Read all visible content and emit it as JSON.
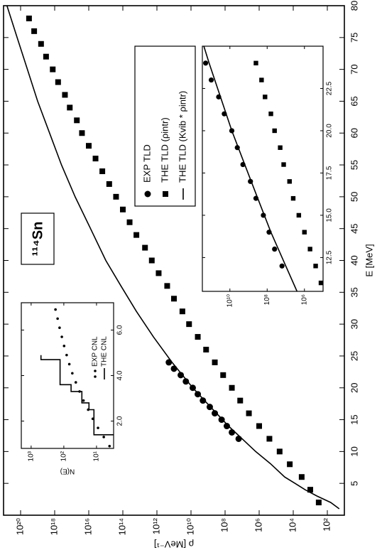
{
  "chart_data": [
    {
      "type": "line",
      "xlabel": "E [MeV]",
      "ylabel": "ρ [MeV⁻¹]",
      "annotation": "¹¹⁴Sn",
      "xlim": [
        0,
        80
      ],
      "xticks": [
        5,
        10,
        15,
        20,
        25,
        30,
        35,
        40,
        45,
        50,
        55,
        60,
        65,
        70,
        75,
        80
      ],
      "ylim": [
        10,
        1e+21
      ],
      "yscale": "log",
      "yticks": [
        {
          "value": 100.0,
          "label": "10²"
        },
        {
          "value": 10000.0,
          "label": "10⁴"
        },
        {
          "value": 1000000.0,
          "label": "10⁶"
        },
        {
          "value": 100000000.0,
          "label": "10⁸"
        },
        {
          "value": 10000000000.0,
          "label": "10¹⁰"
        },
        {
          "value": 1000000000000.0,
          "label": "10¹²"
        },
        {
          "value": 100000000000000.0,
          "label": "10¹⁴"
        },
        {
          "value": 1e+16,
          "label": "10¹⁶"
        },
        {
          "value": 1e+18,
          "label": "10¹⁸"
        },
        {
          "value": 1e+20,
          "label": "10²⁰"
        }
      ],
      "legend": "right",
      "series": [
        {
          "name": "EXP TLD",
          "style": "circle",
          "color": "#000000",
          "x": [
            12,
            13,
            14,
            15,
            16,
            17,
            18,
            19,
            20,
            21,
            22,
            23,
            24
          ],
          "values": [
            16000000.0,
            40000000.0,
            79000000.0,
            160000000.0,
            400000000.0,
            790000000.0,
            2000000000.0,
            4000000000.0,
            7900000000.0,
            20000000000.0,
            40000000000.0,
            100000000000.0,
            200000000000.0
          ]
        },
        {
          "name": "THE TLD (ρintr)",
          "style": "square",
          "color": "#000000",
          "x": [
            2,
            4,
            6,
            8,
            10,
            12,
            14,
            16,
            18,
            20,
            22,
            24,
            26,
            28,
            30,
            32,
            34,
            36,
            38,
            40,
            42,
            44,
            46,
            48,
            50,
            52,
            54,
            56,
            58,
            60,
            62,
            64,
            66,
            68,
            70,
            72,
            74,
            76,
            78
          ],
          "values": [
            320.0,
            1000.0,
            3200.0,
            16000.0,
            63000.0,
            250000.0,
            1000000.0,
            4000000.0,
            13000000.0,
            40000000.0,
            130000000.0,
            400000000.0,
            1300000000.0,
            4000000000.0,
            13000000000.0,
            32000000000.0,
            100000000000.0,
            250000000000.0,
            790000000000.0,
            2000000000000.0,
            5000000000000.0,
            16000000000000.0,
            40000000000000.0,
            100000000000000.0,
            250000000000000.0,
            630000000000000.0,
            1600000000000000.0,
            4000000000000000.0,
            1e+16,
            2.5e+16,
            5e+16,
            1.3e+17,
            2.5e+17,
            6.3e+17,
            1.3e+18,
            3.2e+18,
            6.3e+18,
            1.6e+19,
            3.2e+19
          ]
        },
        {
          "name": "THE TLD (Kvib * ρintr)",
          "style": "line",
          "color": "#000000",
          "x": [
            1,
            2,
            3,
            4,
            5,
            6,
            8,
            10,
            12,
            14,
            16,
            18,
            20,
            22,
            24,
            28,
            32,
            36,
            40,
            45,
            50,
            55,
            60,
            65,
            70,
            75,
            80
          ],
          "values": [
            20.0,
            63.0,
            400.0,
            2000.0,
            7900.0,
            32000.0,
            200000.0,
            1600000.0,
            10000000.0,
            63000000.0,
            320000000.0,
            1600000000.0,
            7900000000.0,
            32000000000.0,
            130000000000.0,
            1600000000000.0,
            16000000000000.0,
            130000000000000.0,
            1000000000000000.0,
            7900000000000000.0,
            6.3e+16,
            4e+17,
            2e+18,
            1e+19,
            4e+19,
            1.6e+20,
            6.3e+20
          ]
        }
      ]
    },
    {
      "type": "line",
      "ylabel": "N(E)",
      "xlim": [
        0.8,
        7.2
      ],
      "xticks": [
        {
          "value": 2,
          "label": "2.0"
        },
        {
          "value": 4,
          "label": "4.0"
        },
        {
          "value": 6,
          "label": "6.0"
        }
      ],
      "ylim": [
        3,
        2000
      ],
      "yscale": "log",
      "yticks": [
        {
          "value": 10,
          "label": "10¹"
        },
        {
          "value": 100,
          "label": "10²"
        },
        {
          "value": 1000,
          "label": "10³"
        }
      ],
      "legend": "lower right",
      "series": [
        {
          "name": "EXP CNL",
          "style": "dot",
          "color": "#000000",
          "x": [
            0.9,
            1.3,
            1.7,
            2.1,
            2.5,
            2.9,
            3.3,
            3.7,
            4.1,
            4.5,
            4.9,
            5.3,
            5.7,
            6.1,
            6.5,
            6.9
          ],
          "values": [
            4,
            6,
            9,
            13,
            18,
            25,
            33,
            43,
            55,
            68,
            82,
            98,
            115,
            135,
            155,
            180
          ]
        },
        {
          "name": "THE CNL",
          "style": "line",
          "color": "#000000",
          "x": [
            1.4,
            1.4,
            2.5,
            2.5,
            2.8,
            2.8,
            3.3,
            3.3,
            3.6,
            3.6,
            4.7,
            4.7,
            4.9
          ],
          "values": [
            3,
            12,
            12,
            17,
            17,
            28,
            28,
            60,
            60,
            130,
            130,
            500,
            500
          ]
        }
      ]
    },
    {
      "type": "line",
      "xlim": [
        10.5,
        25
      ],
      "xticks": [
        12.5,
        {
          "value": 15,
          "label": "15.0"
        },
        17.5,
        {
          "value": 20,
          "label": "20.0"
        },
        22.5
      ],
      "ylim": [
        100000.0,
        300000000000.0
      ],
      "yscale": "log",
      "yticks": [
        {
          "value": 1000000.0,
          "label": "10⁶"
        },
        {
          "value": 100000000.0,
          "label": "10⁸"
        },
        {
          "value": 10000000000.0,
          "label": "10¹⁰"
        }
      ],
      "series": [
        {
          "style": "circle",
          "color": "#000000",
          "x": [
            12,
            13,
            14,
            15,
            16,
            17,
            18,
            19,
            20,
            21,
            22,
            23,
            24
          ],
          "values": [
            16000000.0,
            40000000.0,
            79000000.0,
            160000000.0,
            400000000.0,
            790000000.0,
            2000000000.0,
            4000000000.0,
            7900000000.0,
            20000000000.0,
            40000000000.0,
            100000000000.0,
            200000000000.0
          ]
        },
        {
          "style": "square",
          "color": "#000000",
          "x": [
            11,
            12,
            13,
            14,
            15,
            16,
            17,
            18,
            19,
            20,
            21,
            22,
            23,
            24
          ],
          "values": [
            130000.0,
            250000.0,
            500000.0,
            1000000.0,
            2000000.0,
            4000000.0,
            6300000.0,
            13000000.0,
            20000000.0,
            40000000.0,
            63000000.0,
            130000000.0,
            200000000.0,
            400000000.0
          ]
        },
        {
          "style": "line",
          "color": "#000000",
          "x": [
            10.5,
            12,
            14,
            16,
            18,
            20,
            22,
            24,
            25
          ],
          "values": [
            2500000.0,
            10000000.0,
            63000000.0,
            320000000.0,
            1600000000.0,
            7900000000.0,
            32000000000.0,
            130000000000.0,
            250000000000.0
          ]
        }
      ]
    }
  ]
}
